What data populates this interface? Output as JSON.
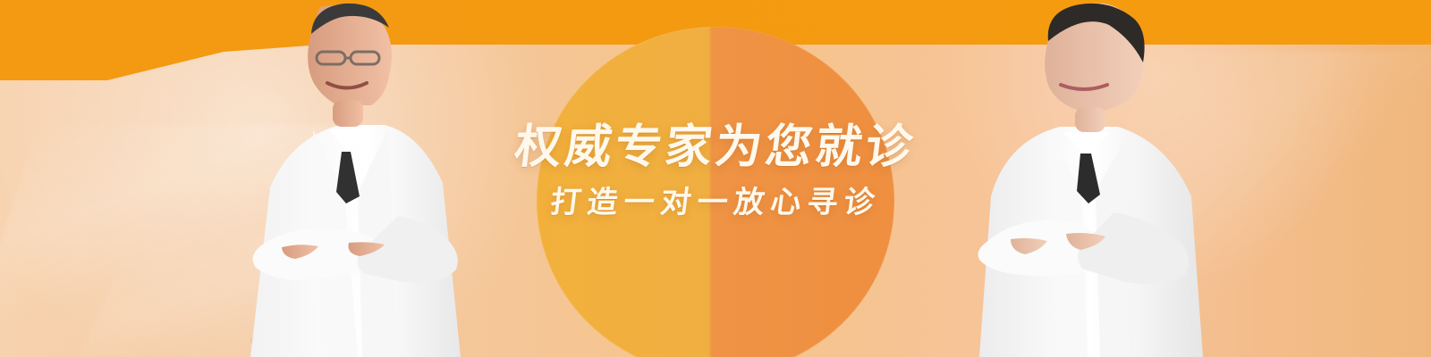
{
  "banner": {
    "headline": "权威专家为您就诊",
    "subheadline": "打造一对一放心寻诊"
  },
  "colors": {
    "accent_orange": "#f59b10",
    "soft_peach": "#f4c08c",
    "left_circle_orange": "#f0af41",
    "right_circle_orange": "#ef8f3f",
    "text_cream": "#fff8ec"
  },
  "icons": {
    "left_person": "male-doctor",
    "right_person": "female-doctor"
  }
}
